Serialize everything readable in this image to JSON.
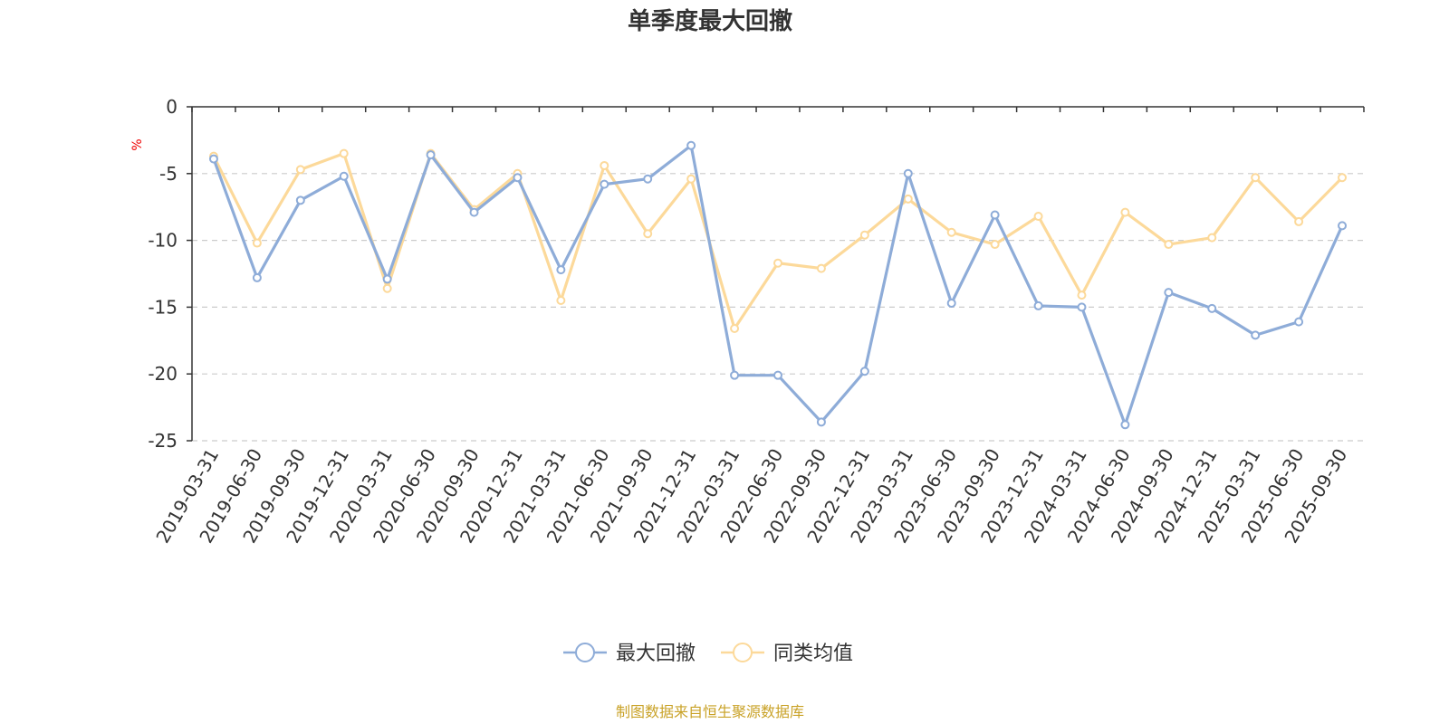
{
  "chart_data": {
    "type": "line",
    "title": "单季度最大回撤",
    "ylabel": "%",
    "ylim": [
      -25,
      0
    ],
    "yticks": [
      0,
      -5,
      -10,
      -15,
      -20,
      -25
    ],
    "grid": true,
    "legend_position": "bottom",
    "categories": [
      "2019-03-31",
      "2019-06-30",
      "2019-09-30",
      "2019-12-31",
      "2020-03-31",
      "2020-06-30",
      "2020-09-30",
      "2020-12-31",
      "2021-03-31",
      "2021-06-30",
      "2021-09-30",
      "2021-12-31",
      "2022-03-31",
      "2022-06-30",
      "2022-09-30",
      "2022-12-31",
      "2023-03-31",
      "2023-06-30",
      "2023-09-30",
      "2023-12-31",
      "2024-03-31",
      "2024-06-30",
      "2024-09-30",
      "2024-12-31",
      "2025-03-31",
      "2025-06-30",
      "2025-09-30"
    ],
    "series": [
      {
        "name": "最大回撤",
        "color": "#8eacd8",
        "values": [
          -3.9,
          -12.8,
          -7.0,
          -5.2,
          -12.9,
          -3.6,
          -7.9,
          -5.3,
          -12.2,
          -5.8,
          -5.4,
          -2.9,
          -20.1,
          -20.1,
          -23.6,
          -19.8,
          -5.0,
          -14.7,
          -8.1,
          -14.9,
          -15.0,
          -23.8,
          -13.9,
          -15.1,
          -17.1,
          -16.1,
          -8.9
        ]
      },
      {
        "name": "同类均值",
        "color": "#fcd99a",
        "values": [
          -3.7,
          -10.2,
          -4.7,
          -3.5,
          -13.6,
          -3.5,
          -7.7,
          -5.0,
          -14.5,
          -4.4,
          -9.5,
          -5.4,
          -16.6,
          -11.7,
          -12.1,
          -9.6,
          -6.9,
          -9.4,
          -10.3,
          -8.2,
          -14.1,
          -7.9,
          -10.3,
          -9.8,
          -5.3,
          -8.6,
          -5.3
        ]
      }
    ],
    "source": "制图数据来自恒生聚源数据库"
  }
}
